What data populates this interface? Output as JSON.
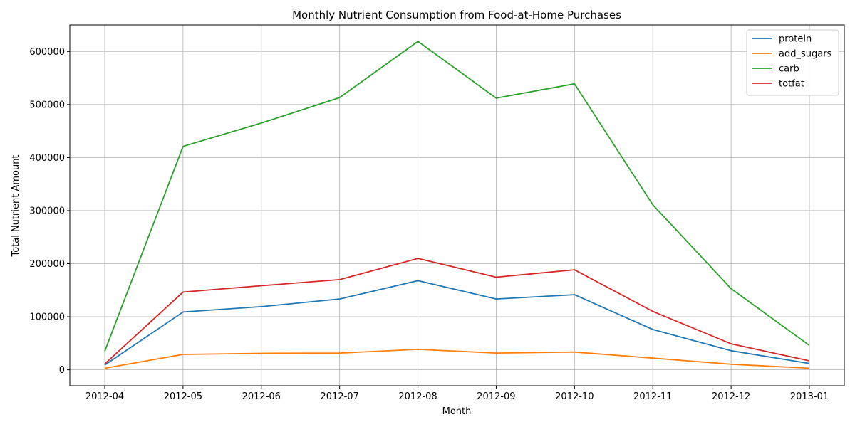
{
  "chart_data": {
    "type": "line",
    "title": "Monthly Nutrient Consumption from Food-at-Home Purchases",
    "xlabel": "Month",
    "ylabel": "Total Nutrient Amount",
    "categories": [
      "2012-04",
      "2012-05",
      "2012-06",
      "2012-07",
      "2012-08",
      "2012-09",
      "2012-10",
      "2012-11",
      "2012-12",
      "2013-01"
    ],
    "ylim": [
      -30000,
      650000
    ],
    "yticks": [
      0,
      100000,
      200000,
      300000,
      400000,
      500000,
      600000
    ],
    "grid": true,
    "legend_position": "top-right",
    "series": [
      {
        "name": "protein",
        "color": "#1f77b4",
        "values": [
          9000,
          109000,
          119000,
          133500,
          168000,
          133500,
          141500,
          76000,
          36000,
          12000
        ]
      },
      {
        "name": "add_sugars",
        "color": "#ff7f0e",
        "values": [
          3000,
          29000,
          31000,
          31500,
          38500,
          31500,
          33500,
          22000,
          10500,
          3000
        ]
      },
      {
        "name": "carb",
        "color": "#2ca02c",
        "values": [
          35000,
          421000,
          465000,
          513000,
          619000,
          512000,
          539000,
          311000,
          153000,
          46000
        ]
      },
      {
        "name": "totfat",
        "color": "#d62728",
        "values": [
          11000,
          146500,
          158500,
          170000,
          210000,
          174500,
          188500,
          110000,
          49000,
          17000
        ]
      }
    ]
  }
}
